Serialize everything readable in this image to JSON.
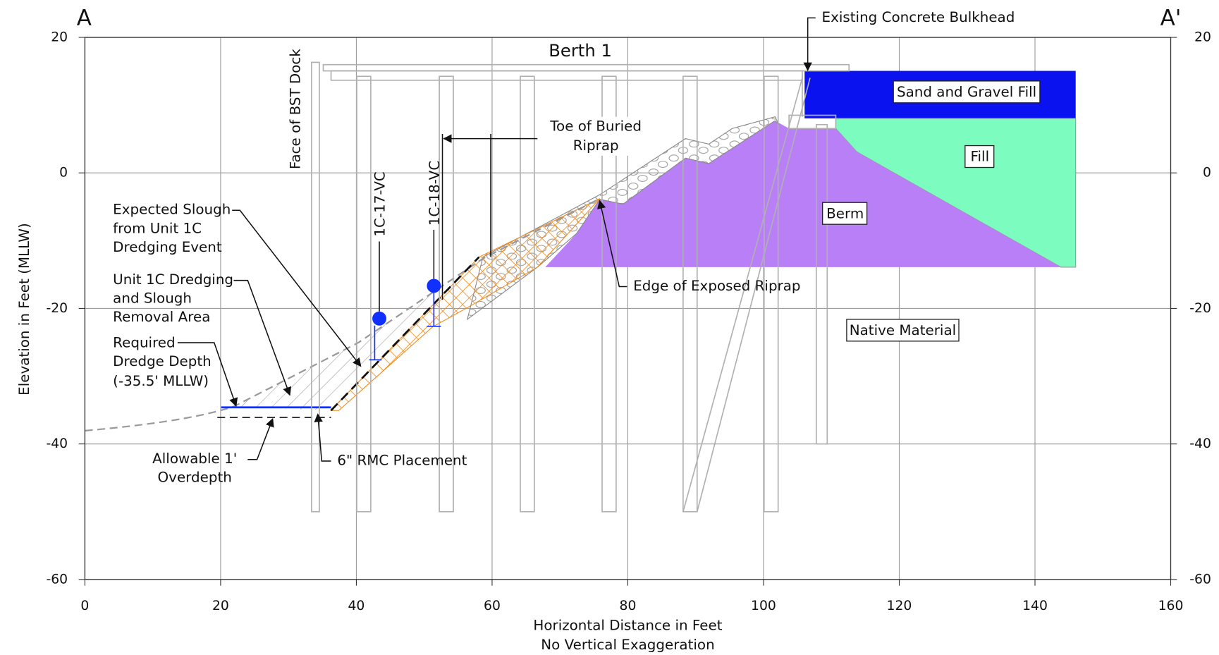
{
  "section": {
    "start": "A",
    "end": "A'"
  },
  "axes": {
    "x_label": [
      "Horizontal Distance in Feet",
      "No Vertical Exaggeration"
    ],
    "y_label": "Elevation in Feet (MLLW)",
    "xlim": [
      0,
      160
    ],
    "ylim": [
      -60,
      20
    ],
    "xticks": [
      0,
      20,
      40,
      60,
      80,
      100,
      120,
      140,
      160
    ],
    "yticks": [
      20,
      0,
      -20,
      -40,
      -60
    ]
  },
  "labels": {
    "berth": "Berth 1",
    "bulkhead": "Existing Concrete Bulkhead",
    "dock": "Face of BST Dock",
    "sand": "Sand and Gravel Fill",
    "fill": "Fill",
    "berm": "Berm",
    "native": "Native Material",
    "toe": [
      "Toe of Buried",
      "Riprap"
    ],
    "edge": "Edge of Exposed Riprap",
    "core1": "1C-17-VC",
    "core2": "1C-18-VC",
    "slough": [
      "Expected Slough",
      "from Unit 1C",
      "Dredging Event"
    ],
    "removal": [
      "Unit 1C Dredging",
      "and Slough",
      "Removal Area"
    ],
    "required": [
      "Required",
      "Dredge Depth",
      "(-35.5' MLLW)"
    ],
    "overdepth": [
      "Allowable 1'",
      "Overdepth"
    ],
    "rmc": "6\" RMC Placement"
  }
}
